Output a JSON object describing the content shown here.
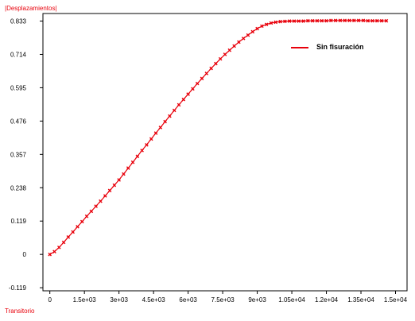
{
  "chart_data": {
    "type": "line",
    "ylabel": "|Desplazamientos|",
    "xlabel": "Transitorio",
    "xlim": [
      -300,
      15500
    ],
    "ylim": [
      -0.13,
      0.86
    ],
    "x_ticks": [
      {
        "value": 0,
        "label": "0"
      },
      {
        "value": 1500,
        "label": "1.5e+03"
      },
      {
        "value": 3000,
        "label": "3e+03"
      },
      {
        "value": 4500,
        "label": "4.5e+03"
      },
      {
        "value": 6000,
        "label": "6e+03"
      },
      {
        "value": 7500,
        "label": "7.5e+03"
      },
      {
        "value": 9000,
        "label": "9e+03"
      },
      {
        "value": 10500,
        "label": "1.05e+04"
      },
      {
        "value": 12000,
        "label": "1.2e+04"
      },
      {
        "value": 13500,
        "label": "1.35e+04"
      },
      {
        "value": 15000,
        "label": "1.5e+04"
      }
    ],
    "y_ticks": [
      {
        "value": 0.833,
        "label": "0.833"
      },
      {
        "value": 0.714,
        "label": "0.714"
      },
      {
        "value": 0.595,
        "label": "0.595"
      },
      {
        "value": 0.476,
        "label": "0.476"
      },
      {
        "value": 0.357,
        "label": "0.357"
      },
      {
        "value": 0.238,
        "label": "0.238"
      },
      {
        "value": 0.119,
        "label": "0.119"
      },
      {
        "value": 0,
        "label": "0"
      },
      {
        "value": -0.119,
        "label": "-0.119"
      }
    ],
    "legend": {
      "placement": "top-right"
    },
    "series": [
      {
        "name": "Sin fisuración",
        "color": "#e8000b",
        "x": [
          0,
          200,
          400,
          600,
          800,
          1000,
          1200,
          1400,
          1600,
          1800,
          2000,
          2200,
          2400,
          2600,
          2800,
          3000,
          3200,
          3400,
          3600,
          3800,
          4000,
          4200,
          4400,
          4600,
          4800,
          5000,
          5200,
          5400,
          5600,
          5800,
          6000,
          6200,
          6400,
          6600,
          6800,
          7000,
          7200,
          7400,
          7600,
          7800,
          8000,
          8200,
          8400,
          8600,
          8800,
          9000,
          9200,
          9400,
          9600,
          9800,
          10000,
          10200,
          10400,
          10600,
          10800,
          11000,
          11200,
          11400,
          11600,
          11800,
          12000,
          12200,
          12400,
          12600,
          12800,
          13000,
          13200,
          13400,
          13600,
          13800,
          14000,
          14200,
          14400,
          14600
        ],
        "values": [
          0.0,
          0.01,
          0.025,
          0.043,
          0.062,
          0.08,
          0.099,
          0.117,
          0.136,
          0.154,
          0.172,
          0.19,
          0.209,
          0.228,
          0.247,
          0.266,
          0.287,
          0.308,
          0.329,
          0.35,
          0.371,
          0.391,
          0.412,
          0.433,
          0.453,
          0.474,
          0.494,
          0.514,
          0.534,
          0.553,
          0.572,
          0.591,
          0.61,
          0.628,
          0.646,
          0.664,
          0.681,
          0.698,
          0.714,
          0.729,
          0.744,
          0.758,
          0.771,
          0.783,
          0.795,
          0.806,
          0.815,
          0.821,
          0.826,
          0.829,
          0.831,
          0.832,
          0.833,
          0.833,
          0.833,
          0.833,
          0.834,
          0.834,
          0.834,
          0.834,
          0.834,
          0.835,
          0.835,
          0.835,
          0.835,
          0.835,
          0.835,
          0.835,
          0.835,
          0.834,
          0.834,
          0.834,
          0.834,
          0.834
        ]
      }
    ]
  }
}
